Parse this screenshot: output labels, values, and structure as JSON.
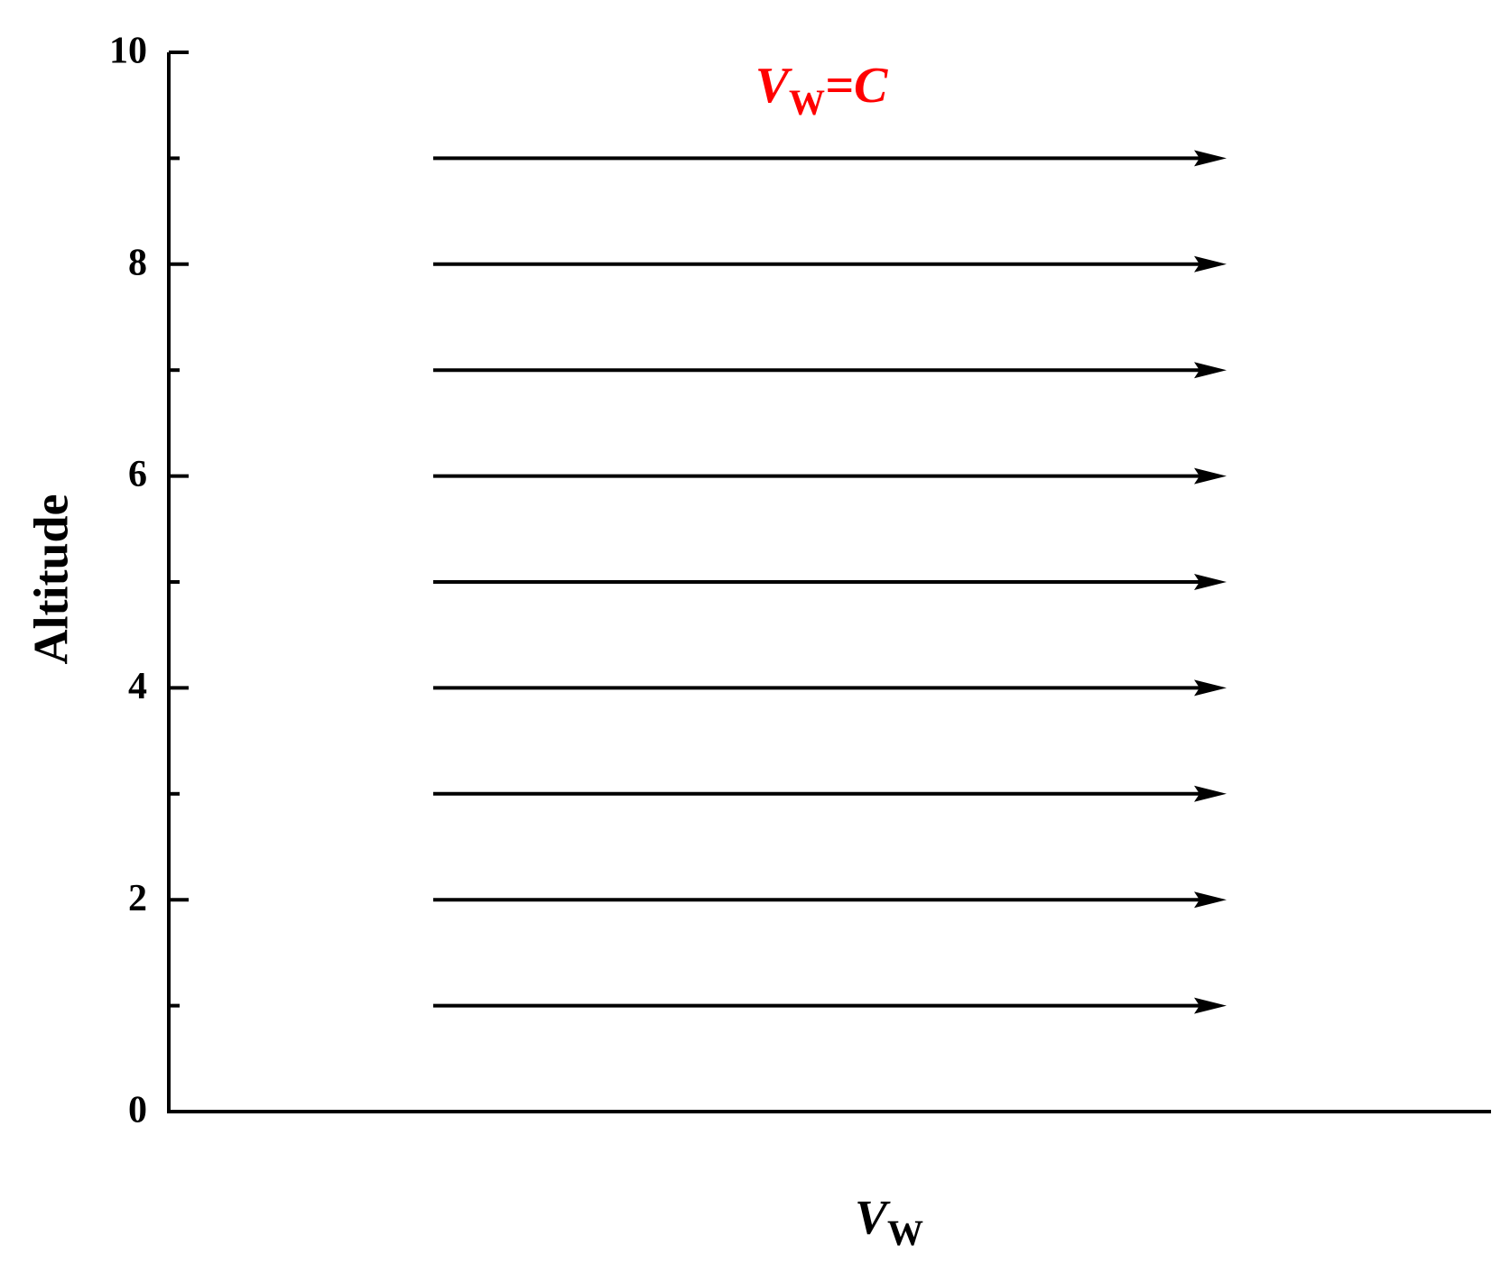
{
  "chart_data": {
    "type": "quiver",
    "annotation": {
      "main": "V",
      "sub": "W",
      "suffix": "=C",
      "color": "#ff0000"
    },
    "ylabel": "Altitude",
    "xlabel": {
      "main": "V",
      "sub": "W"
    },
    "y": [
      1,
      2,
      3,
      4,
      5,
      6,
      7,
      8,
      9
    ],
    "x": [
      0.2,
      0.2,
      0.2,
      0.2,
      0.2,
      0.2,
      0.2,
      0.2,
      0.2
    ],
    "values": [
      0.6,
      0.6,
      0.6,
      0.6,
      0.6,
      0.6,
      0.6,
      0.6,
      0.6
    ],
    "color": "#000000",
    "xlim": [
      0,
      1
    ],
    "ylim": [
      0,
      10
    ],
    "yticks": [
      0,
      2,
      4,
      6,
      8,
      10
    ],
    "yminorticks": [
      1,
      3,
      5,
      7,
      9
    ]
  }
}
